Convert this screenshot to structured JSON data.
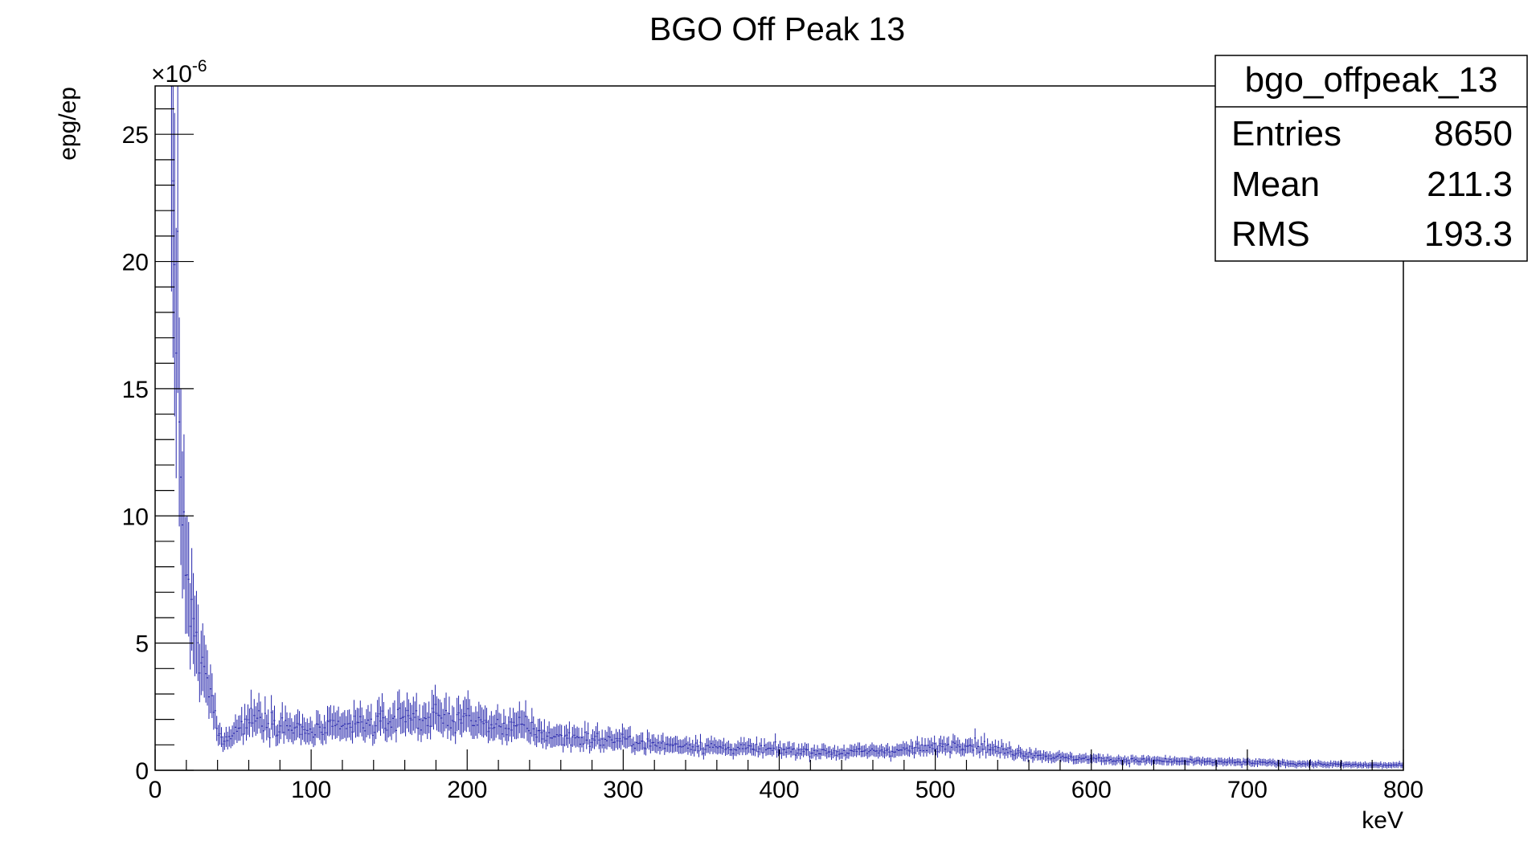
{
  "chart_data": {
    "type": "histogram",
    "title": "BGO Off Peak 13",
    "xlabel": "keV",
    "ylabel": "epg/ep",
    "y_multiplier": "×10",
    "y_multiplier_exp": "-6",
    "xlim": [
      0,
      800
    ],
    "ylim": [
      0,
      26.9
    ],
    "x_ticks": [
      0,
      100,
      200,
      300,
      400,
      500,
      600,
      700,
      800
    ],
    "y_ticks": [
      0,
      5,
      10,
      15,
      20,
      25
    ],
    "x_tick_labels": [
      "0",
      "100",
      "200",
      "300",
      "400",
      "500",
      "600",
      "700",
      "800"
    ],
    "y_tick_labels": [
      "0",
      "5",
      "10",
      "15",
      "20",
      "25"
    ],
    "grid": false,
    "series_color": "#2222aa",
    "bin_width_keV": 1,
    "series": [
      {
        "profile_x": [
          10,
          11,
          12,
          13,
          14,
          15,
          16,
          17,
          18,
          19,
          20,
          22,
          24,
          26,
          28,
          30,
          32,
          34,
          36,
          38,
          40,
          42,
          45,
          50,
          55,
          60,
          65,
          70,
          80,
          90,
          100,
          110,
          120,
          130,
          140,
          150,
          160,
          170,
          180,
          190,
          200,
          210,
          220,
          230,
          240,
          250,
          260,
          270,
          280,
          290,
          300,
          320,
          340,
          360,
          380,
          400,
          420,
          440,
          460,
          480,
          500,
          510,
          520,
          530,
          540,
          560,
          580,
          600,
          620,
          640,
          660,
          680,
          700,
          720,
          740,
          760,
          780,
          799
        ],
        "profile_y": [
          24.0,
          25.2,
          22.3,
          20.5,
          17.5,
          14.8,
          12.6,
          11.2,
          9.9,
          8.7,
          7.6,
          6.3,
          5.7,
          5.0,
          4.6,
          4.2,
          3.8,
          3.3,
          2.8,
          2.2,
          1.6,
          1.2,
          1.3,
          1.5,
          1.7,
          2.0,
          2.1,
          2.0,
          1.8,
          1.6,
          1.5,
          1.6,
          1.7,
          1.8,
          1.8,
          1.9,
          2.2,
          2.0,
          2.1,
          2.0,
          2.1,
          1.8,
          1.7,
          1.8,
          1.6,
          1.4,
          1.3,
          1.3,
          1.2,
          1.2,
          1.2,
          1.0,
          1.0,
          0.9,
          0.85,
          0.8,
          0.75,
          0.7,
          0.75,
          0.8,
          0.9,
          1.0,
          1.05,
          0.95,
          0.8,
          0.65,
          0.5,
          0.45,
          0.4,
          0.38,
          0.35,
          0.33,
          0.3,
          0.28,
          0.25,
          0.22,
          0.2,
          0.2
        ],
        "relative_error": 0.3,
        "noise_fraction": 0.28
      }
    ]
  },
  "stats_box": {
    "name": "bgo_offpeak_13",
    "rows": [
      {
        "label": "Entries",
        "value": "8650"
      },
      {
        "label": "Mean",
        "value": "211.3"
      },
      {
        "label": "RMS",
        "value": "193.3"
      }
    ]
  }
}
